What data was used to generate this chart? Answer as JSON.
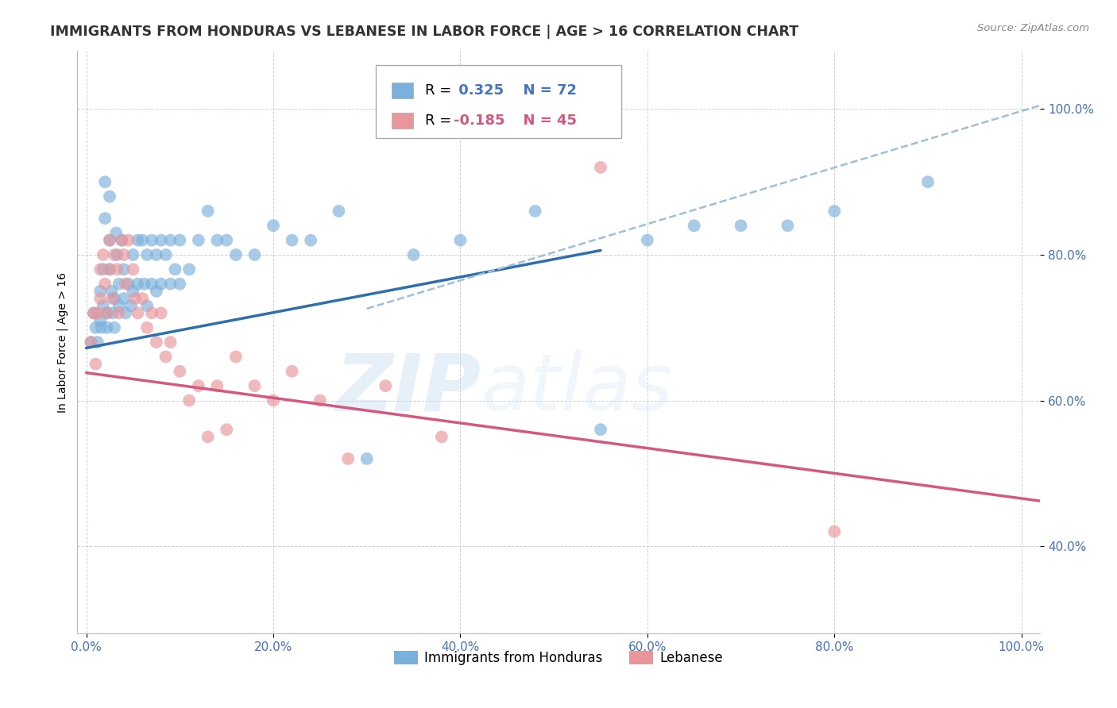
{
  "title": "IMMIGRANTS FROM HONDURAS VS LEBANESE IN LABOR FORCE | AGE > 16 CORRELATION CHART",
  "source": "Source: ZipAtlas.com",
  "ylabel": "In Labor Force | Age > 16",
  "watermark_zip": "ZIP",
  "watermark_atlas": "atlas",
  "xlim": [
    -0.01,
    1.02
  ],
  "ylim": [
    0.28,
    1.08
  ],
  "xtick_labels": [
    "0.0%",
    "20.0%",
    "40.0%",
    "60.0%",
    "80.0%",
    "100.0%"
  ],
  "ytick_labels": [
    "40.0%",
    "60.0%",
    "80.0%",
    "100.0%"
  ],
  "ytick_positions": [
    0.4,
    0.6,
    0.8,
    1.0
  ],
  "xtick_positions": [
    0.0,
    0.2,
    0.4,
    0.6,
    0.8,
    1.0
  ],
  "legend_r1_prefix": "R = ",
  "legend_r1_value": " 0.325",
  "legend_r1_n": "  N = 72",
  "legend_r2_prefix": "R = ",
  "legend_r2_value": "-0.185",
  "legend_r2_n": "  N = 45",
  "honduras_color": "#7ab0dc",
  "lebanese_color": "#e8969a",
  "honduras_line_color": "#2e6fad",
  "lebanese_line_color": "#d45880",
  "dashed_line_color": "#9dbfd8",
  "tick_color": "#4472c4",
  "title_fontsize": 12.5,
  "axis_label_fontsize": 10,
  "tick_fontsize": 11,
  "legend_fontsize": 13,
  "honduras_x": [
    0.005,
    0.008,
    0.01,
    0.012,
    0.015,
    0.015,
    0.016,
    0.018,
    0.018,
    0.02,
    0.02,
    0.022,
    0.022,
    0.025,
    0.025,
    0.025,
    0.027,
    0.028,
    0.03,
    0.03,
    0.032,
    0.033,
    0.035,
    0.035,
    0.038,
    0.04,
    0.04,
    0.042,
    0.045,
    0.048,
    0.05,
    0.05,
    0.055,
    0.055,
    0.06,
    0.062,
    0.065,
    0.065,
    0.07,
    0.07,
    0.075,
    0.075,
    0.08,
    0.08,
    0.085,
    0.09,
    0.09,
    0.095,
    0.1,
    0.1,
    0.11,
    0.12,
    0.13,
    0.14,
    0.15,
    0.16,
    0.18,
    0.2,
    0.22,
    0.24,
    0.27,
    0.3,
    0.35,
    0.4,
    0.48,
    0.55,
    0.6,
    0.65,
    0.7,
    0.75,
    0.8,
    0.9
  ],
  "honduras_y": [
    0.68,
    0.72,
    0.7,
    0.68,
    0.75,
    0.71,
    0.7,
    0.78,
    0.73,
    0.9,
    0.85,
    0.72,
    0.7,
    0.88,
    0.82,
    0.78,
    0.75,
    0.72,
    0.74,
    0.7,
    0.83,
    0.8,
    0.76,
    0.73,
    0.82,
    0.78,
    0.74,
    0.72,
    0.76,
    0.73,
    0.8,
    0.75,
    0.82,
    0.76,
    0.82,
    0.76,
    0.8,
    0.73,
    0.82,
    0.76,
    0.8,
    0.75,
    0.82,
    0.76,
    0.8,
    0.82,
    0.76,
    0.78,
    0.82,
    0.76,
    0.78,
    0.82,
    0.86,
    0.82,
    0.82,
    0.8,
    0.8,
    0.84,
    0.82,
    0.82,
    0.86,
    0.52,
    0.8,
    0.82,
    0.86,
    0.56,
    0.82,
    0.84,
    0.84,
    0.84,
    0.86,
    0.9
  ],
  "lebanese_x": [
    0.005,
    0.008,
    0.01,
    0.012,
    0.015,
    0.015,
    0.018,
    0.02,
    0.022,
    0.025,
    0.025,
    0.028,
    0.03,
    0.033,
    0.035,
    0.038,
    0.04,
    0.042,
    0.045,
    0.05,
    0.052,
    0.055,
    0.06,
    0.065,
    0.07,
    0.075,
    0.08,
    0.085,
    0.09,
    0.1,
    0.11,
    0.12,
    0.13,
    0.14,
    0.15,
    0.16,
    0.18,
    0.2,
    0.22,
    0.25,
    0.28,
    0.32,
    0.38,
    0.55,
    0.8
  ],
  "lebanese_y": [
    0.68,
    0.72,
    0.65,
    0.72,
    0.78,
    0.74,
    0.8,
    0.76,
    0.72,
    0.82,
    0.78,
    0.74,
    0.8,
    0.78,
    0.72,
    0.82,
    0.8,
    0.76,
    0.82,
    0.78,
    0.74,
    0.72,
    0.74,
    0.7,
    0.72,
    0.68,
    0.72,
    0.66,
    0.68,
    0.64,
    0.6,
    0.62,
    0.55,
    0.62,
    0.56,
    0.66,
    0.62,
    0.6,
    0.64,
    0.6,
    0.52,
    0.62,
    0.55,
    0.92,
    0.42
  ],
  "honduras_trend_x": [
    0.0,
    0.55
  ],
  "honduras_trend_y": [
    0.672,
    0.806
  ],
  "lebanese_trend_x": [
    0.0,
    1.02
  ],
  "lebanese_trend_y": [
    0.638,
    0.462
  ],
  "dashed_trend_x": [
    0.3,
    1.02
  ],
  "dashed_trend_y": [
    0.726,
    1.005
  ]
}
